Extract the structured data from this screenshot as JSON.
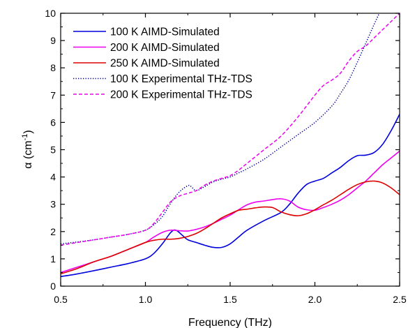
{
  "chart_data": {
    "type": "line",
    "xlabel": "Frequency (THz)",
    "ylabel": {
      "base": "α (cm",
      "sup": "-1",
      "close": ")"
    },
    "xlim": [
      0.5,
      2.5
    ],
    "ylim": [
      0,
      10
    ],
    "xticks": [
      0.5,
      1.0,
      1.5,
      2.0,
      2.5
    ],
    "xtick_labels": [
      "0.5",
      "1.0",
      "1.5",
      "2.0",
      "2.5"
    ],
    "yticks": [
      0,
      1,
      2,
      3,
      4,
      5,
      6,
      7,
      8,
      9,
      10
    ],
    "ytick_labels": [
      "0",
      "1",
      "2",
      "3",
      "4",
      "5",
      "6",
      "7",
      "8",
      "9",
      "10"
    ],
    "grid": false,
    "legend_position": "top-left",
    "series": [
      {
        "name": "100 K AIMD-Simulated",
        "color": "#0000dd",
        "style": "solid",
        "x": [
          0.5,
          0.6,
          0.7,
          0.8,
          0.9,
          1.0,
          1.05,
          1.1,
          1.15,
          1.18,
          1.22,
          1.25,
          1.3,
          1.35,
          1.4,
          1.45,
          1.5,
          1.55,
          1.6,
          1.7,
          1.8,
          1.85,
          1.9,
          1.95,
          2.0,
          2.05,
          2.1,
          2.15,
          2.2,
          2.25,
          2.3,
          2.35,
          2.4,
          2.45,
          2.5
        ],
        "y": [
          0.35,
          0.45,
          0.57,
          0.7,
          0.83,
          1.0,
          1.2,
          1.55,
          1.97,
          2.05,
          1.85,
          1.7,
          1.6,
          1.5,
          1.42,
          1.42,
          1.55,
          1.8,
          2.05,
          2.4,
          2.7,
          3.0,
          3.4,
          3.72,
          3.85,
          3.95,
          4.15,
          4.35,
          4.6,
          4.78,
          4.8,
          4.9,
          5.2,
          5.7,
          6.3
        ]
      },
      {
        "name": "200 K AIMD-Simulated",
        "color": "#ee00ee",
        "style": "solid",
        "x": [
          0.5,
          0.6,
          0.7,
          0.8,
          0.9,
          1.0,
          1.05,
          1.1,
          1.15,
          1.2,
          1.25,
          1.3,
          1.35,
          1.4,
          1.45,
          1.5,
          1.55,
          1.6,
          1.65,
          1.7,
          1.75,
          1.8,
          1.85,
          1.9,
          1.95,
          2.0,
          2.05,
          2.1,
          2.15,
          2.2,
          2.25,
          2.3,
          2.35,
          2.4,
          2.45,
          2.5
        ],
        "y": [
          0.5,
          0.7,
          0.9,
          1.1,
          1.35,
          1.6,
          1.8,
          1.97,
          2.05,
          2.03,
          2.02,
          2.08,
          2.17,
          2.3,
          2.45,
          2.6,
          2.8,
          2.98,
          3.08,
          3.12,
          3.17,
          3.2,
          3.12,
          2.9,
          2.8,
          2.78,
          2.88,
          3.0,
          3.15,
          3.35,
          3.6,
          3.85,
          4.15,
          4.45,
          4.7,
          4.95
        ]
      },
      {
        "name": "250 K AIMD-Simulated",
        "color": "#dd0000",
        "style": "solid",
        "x": [
          0.5,
          0.6,
          0.7,
          0.8,
          0.9,
          1.0,
          1.05,
          1.1,
          1.15,
          1.2,
          1.25,
          1.3,
          1.35,
          1.4,
          1.45,
          1.5,
          1.55,
          1.6,
          1.65,
          1.7,
          1.75,
          1.8,
          1.85,
          1.9,
          1.95,
          2.0,
          2.05,
          2.1,
          2.15,
          2.2,
          2.25,
          2.3,
          2.35,
          2.4,
          2.45,
          2.5
        ],
        "y": [
          0.45,
          0.65,
          0.9,
          1.1,
          1.35,
          1.6,
          1.68,
          1.72,
          1.72,
          1.75,
          1.82,
          1.93,
          2.1,
          2.3,
          2.5,
          2.65,
          2.78,
          2.82,
          2.87,
          2.9,
          2.88,
          2.72,
          2.62,
          2.58,
          2.65,
          2.8,
          2.98,
          3.15,
          3.35,
          3.55,
          3.72,
          3.82,
          3.85,
          3.78,
          3.6,
          3.35
        ]
      },
      {
        "name": "100 K Experimental THz-TDS",
        "color": "#000099",
        "style": "dotted",
        "x": [
          0.5,
          0.6,
          0.7,
          0.8,
          0.9,
          1.0,
          1.05,
          1.1,
          1.15,
          1.2,
          1.25,
          1.27,
          1.3,
          1.35,
          1.4,
          1.45,
          1.5,
          1.55,
          1.6,
          1.7,
          1.8,
          1.9,
          2.0,
          2.1,
          2.15,
          2.2,
          2.25,
          2.3,
          2.35,
          2.38
        ],
        "y": [
          1.55,
          1.62,
          1.7,
          1.8,
          1.9,
          2.05,
          2.25,
          2.55,
          3.05,
          3.45,
          3.68,
          3.65,
          3.5,
          3.65,
          3.82,
          3.92,
          4.0,
          4.15,
          4.3,
          4.65,
          5.1,
          5.55,
          6.0,
          6.6,
          7.05,
          7.55,
          8.2,
          8.9,
          9.6,
          10.0
        ]
      },
      {
        "name": "200 K Experimental THz-TDS",
        "color": "#ee00ee",
        "style": "dashed",
        "x": [
          0.5,
          0.6,
          0.7,
          0.8,
          0.9,
          1.0,
          1.05,
          1.1,
          1.15,
          1.2,
          1.25,
          1.3,
          1.35,
          1.4,
          1.45,
          1.5,
          1.55,
          1.6,
          1.7,
          1.8,
          1.9,
          2.0,
          2.05,
          2.1,
          2.15,
          2.2,
          2.25,
          2.3,
          2.35,
          2.4,
          2.45,
          2.5
        ],
        "y": [
          1.5,
          1.6,
          1.7,
          1.8,
          1.9,
          2.05,
          2.3,
          2.7,
          3.1,
          3.3,
          3.4,
          3.5,
          3.7,
          3.85,
          3.95,
          4.05,
          4.25,
          4.5,
          5.0,
          5.5,
          6.2,
          7.0,
          7.35,
          7.55,
          7.8,
          8.25,
          8.6,
          8.8,
          9.1,
          9.4,
          9.7,
          10.0
        ]
      }
    ]
  }
}
